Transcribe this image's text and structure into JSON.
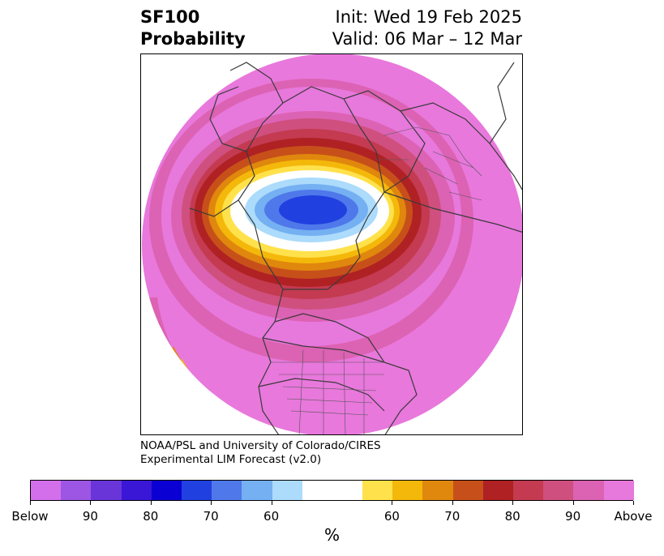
{
  "header": {
    "variable": "SF100",
    "product": "Probability",
    "init": "Init: Wed 19 Feb 2025",
    "valid": "Valid: 06 Mar – 12 Mar"
  },
  "credit": {
    "line1": "NOAA/PSL and University of Colorado/CIRES",
    "line2": "Experimental LIM Forecast (v2.0)"
  },
  "colorbar": {
    "unit": "%",
    "tick_labels": [
      "Below",
      "90",
      "80",
      "70",
      "60",
      "60",
      "70",
      "80",
      "90",
      "Above"
    ],
    "colors": [
      "#d36fea",
      "#9d55e4",
      "#6a35d8",
      "#3a16d6",
      "#0a00d4",
      "#2140e0",
      "#4f78ea",
      "#74b0f2",
      "#acdbfb",
      "#ffffff",
      "#ffe14b",
      "#f4b80a",
      "#e0870e",
      "#c7501a",
      "#b02124",
      "#c43a50",
      "#cf4f7e",
      "#dc62b3",
      "#e778dc"
    ]
  },
  "map": {
    "projection": "north-polar-stereographic",
    "background_color": "#e878dc",
    "anomaly_center": "northern Greenland / Arctic Ocean, below-normal probability"
  }
}
